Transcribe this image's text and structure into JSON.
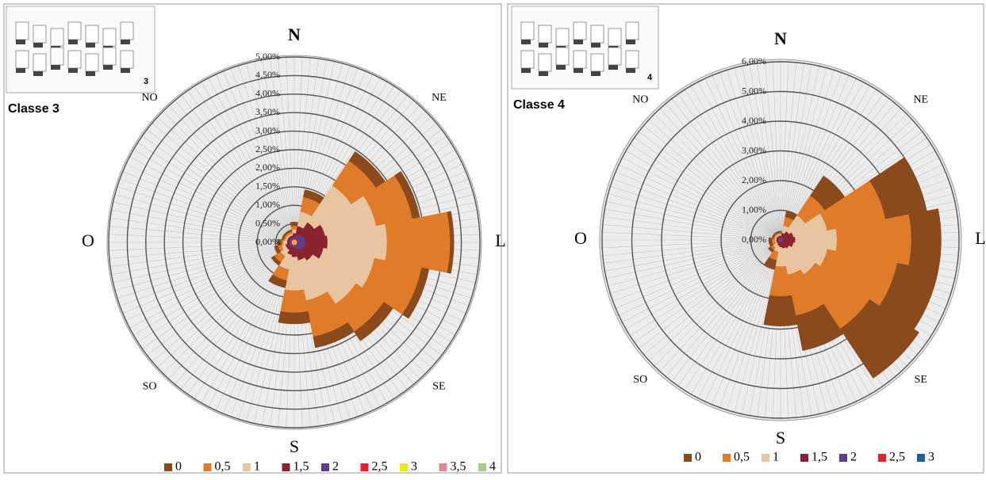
{
  "chart_data": [
    {
      "type": "windrose",
      "title": "Classe 3",
      "inset_label": "3",
      "categories": [
        "N",
        null,
        "NE",
        null,
        "L",
        null,
        "SE",
        null,
        "S",
        null,
        "SO",
        null,
        "O",
        null,
        "NO",
        null
      ],
      "ylim": [
        0,
        5
      ],
      "yticks": [
        {
          "value": 0,
          "label": "0,00%"
        },
        {
          "value": 0.5,
          "label": "0,50%"
        },
        {
          "value": 1,
          "label": "1,00%"
        },
        {
          "value": 1.5,
          "label": "1,50%"
        },
        {
          "value": 2,
          "label": "2,00%"
        },
        {
          "value": 2.5,
          "label": "2,50%"
        },
        {
          "value": 3,
          "label": "3,00%"
        },
        {
          "value": 3.5,
          "label": "3,50%"
        },
        {
          "value": 4,
          "label": "4,00%"
        },
        {
          "value": 4.5,
          "label": "4,50%"
        },
        {
          "value": 5,
          "label": "5,00%"
        }
      ],
      "series": [
        {
          "name": "0",
          "color": "#8b4a1b",
          "values": [
            0.1,
            0.2,
            0.3,
            0.2,
            0.1,
            0.2,
            0.3,
            0.3,
            0.3,
            0.2,
            0.1,
            0.1,
            0.1,
            0.05,
            0.05,
            0.05
          ]
        },
        {
          "name": "0,5",
          "color": "#e07b2a",
          "values": [
            0.1,
            0.4,
            0.8,
            1.0,
            1.7,
            1.3,
            0.9,
            1.0,
            0.6,
            0.3,
            0.2,
            0.1,
            0.05,
            0.05,
            0.05,
            0.05
          ]
        },
        {
          "name": "1",
          "color": "#e8c4a0",
          "values": [
            0.1,
            0.4,
            1.2,
            1.4,
            1.6,
            1.4,
            1.4,
            1.1,
            0.9,
            0.4,
            0.2,
            0.1,
            0.1,
            0.05,
            0.05,
            0.05
          ]
        },
        {
          "name": "1,5",
          "color": "#8b2230",
          "values": [
            0.1,
            0.25,
            0.4,
            0.55,
            0.6,
            0.5,
            0.35,
            0.3,
            0.25,
            0.2,
            0.1,
            0.1,
            0.05,
            0.05,
            0.05,
            0.05
          ]
        },
        {
          "name": "2",
          "color": "#5b3f8c",
          "values": [
            0.05,
            0.1,
            0.15,
            0.2,
            0.2,
            0.2,
            0.15,
            0.1,
            0.05,
            0.05,
            0.05,
            0.05,
            0.05,
            0.05,
            0.05,
            0.05
          ]
        },
        {
          "name": "2,5",
          "color": "#e8202a",
          "values": [
            0.03,
            0.03,
            0.03,
            0.03,
            0.03,
            0.03,
            0.03,
            0.03,
            0.03,
            0.03,
            0.03,
            0.03,
            0.03,
            0.03,
            0.03,
            0.03
          ]
        },
        {
          "name": "3",
          "color": "#f2e41c",
          "values": [
            0.02,
            0.02,
            0.02,
            0.02,
            0.02,
            0.02,
            0.02,
            0.02,
            0.02,
            0.02,
            0.02,
            0.02,
            0.02,
            0.02,
            0.02,
            0.02
          ]
        },
        {
          "name": "3,5",
          "color": "#d98c96",
          "values": [
            0.03,
            0.03,
            0.03,
            0.03,
            0.03,
            0.03,
            0.03,
            0.03,
            0.03,
            0.03,
            0.03,
            0.03,
            0.03,
            0.03,
            0.03,
            0.03
          ]
        },
        {
          "name": "4",
          "color": "#a8cc8c",
          "values": [
            0.02,
            0.02,
            0.02,
            0.02,
            0.02,
            0.02,
            0.02,
            0.02,
            0.02,
            0.02,
            0.02,
            0.02,
            0.02,
            0.02,
            0.02,
            0.02
          ]
        }
      ]
    },
    {
      "type": "windrose",
      "title": "Classe 4",
      "inset_label": "4",
      "categories": [
        "N",
        null,
        "NE",
        null,
        "L",
        null,
        "SE",
        null,
        "S",
        null,
        "SO",
        null,
        "O",
        null,
        "NO",
        null
      ],
      "ylim": [
        0,
        6
      ],
      "yticks": [
        {
          "value": 0,
          "label": "0,00%"
        },
        {
          "value": 1,
          "label": "1,00%"
        },
        {
          "value": 2,
          "label": "2,00%"
        },
        {
          "value": 3,
          "label": "3,00%"
        },
        {
          "value": 4,
          "label": "4,00%"
        },
        {
          "value": 5,
          "label": "5,00%"
        },
        {
          "value": 6,
          "label": "6,00%"
        }
      ],
      "series": [
        {
          "name": "0",
          "color": "#8b4a1b",
          "values": [
            0.05,
            0.2,
            0.8,
            1.4,
            1.0,
            1.4,
            2.0,
            1.2,
            1.0,
            0.3,
            0.1,
            0.1,
            0.1,
            0.05,
            0.05,
            0.05
          ]
        },
        {
          "name": "0,5",
          "color": "#e07b2a",
          "values": [
            0.05,
            0.3,
            0.8,
            2.0,
            2.5,
            2.4,
            2.2,
            1.4,
            1.0,
            0.3,
            0.1,
            0.1,
            0.1,
            0.05,
            0.05,
            0.05
          ]
        },
        {
          "name": "1",
          "color": "#e8c4a0",
          "values": [
            0.05,
            0.25,
            0.65,
            1.15,
            1.4,
            1.15,
            1.05,
            0.9,
            0.65,
            0.2,
            0.15,
            0.05,
            0.05,
            0.05,
            0.05,
            0.05
          ]
        },
        {
          "name": "1,5",
          "color": "#8b2230",
          "values": [
            0.05,
            0.15,
            0.25,
            0.35,
            0.4,
            0.35,
            0.25,
            0.2,
            0.15,
            0.1,
            0.05,
            0.05,
            0.05,
            0.05,
            0.05,
            0.05
          ]
        },
        {
          "name": "2",
          "color": "#5b3f8c",
          "values": [
            0.05,
            0.05,
            0.05,
            0.05,
            0.05,
            0.05,
            0.05,
            0.05,
            0.05,
            0.05,
            0.05,
            0.05,
            0.05,
            0.05,
            0.05,
            0.05
          ]
        },
        {
          "name": "2,5",
          "color": "#e8202a",
          "values": [
            0.03,
            0.03,
            0.03,
            0.03,
            0.03,
            0.03,
            0.03,
            0.03,
            0.03,
            0.03,
            0.03,
            0.03,
            0.03,
            0.03,
            0.03,
            0.03
          ]
        },
        {
          "name": "3",
          "color": "#1f5fa0",
          "values": [
            0.02,
            0.02,
            0.02,
            0.02,
            0.02,
            0.02,
            0.02,
            0.02,
            0.02,
            0.02,
            0.02,
            0.02,
            0.02,
            0.02,
            0.02,
            0.02
          ]
        }
      ]
    }
  ]
}
